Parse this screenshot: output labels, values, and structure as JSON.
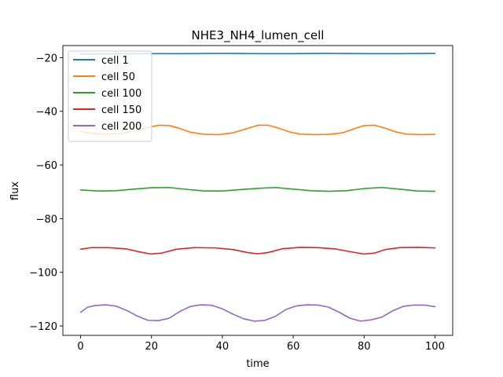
{
  "chart_data": {
    "type": "line",
    "title": "NHE3_NH4_lumen_cell",
    "xlabel": "time",
    "ylabel": "flux",
    "xlim": [
      -5,
      105
    ],
    "ylim": [
      -123.5,
      -15.5
    ],
    "xticks": [
      0,
      20,
      40,
      60,
      80,
      100
    ],
    "yticks": [
      -120,
      -100,
      -80,
      -60,
      -40,
      -20
    ],
    "xtick_labels": [
      "0",
      "20",
      "40",
      "60",
      "80",
      "100"
    ],
    "ytick_labels": [
      "−120",
      "−100",
      "−80",
      "−60",
      "−40",
      "−20"
    ],
    "grid": false,
    "legend_position": "top-left",
    "series": [
      {
        "name": "cell 1",
        "color": "#1f77b4",
        "x": [
          0,
          10,
          20,
          30,
          40,
          50,
          60,
          70,
          80,
          90,
          100
        ],
        "y": [
          -18.6,
          -18.6,
          -18.5,
          -18.5,
          -18.4,
          -18.5,
          -18.5,
          -18.4,
          -18.5,
          -18.5,
          -18.4
        ]
      },
      {
        "name": "cell 50",
        "color": "#ff7f0e",
        "x": [
          0,
          3,
          7,
          11,
          15,
          19,
          22,
          25,
          28,
          31,
          35,
          39,
          43,
          47,
          50,
          53,
          56,
          59,
          62,
          66,
          70,
          74,
          77,
          80,
          83,
          86,
          89,
          92,
          96,
          100
        ],
        "y": [
          -47.5,
          -48.2,
          -48.5,
          -48.3,
          -47.4,
          -46.0,
          -45.2,
          -45.3,
          -46.4,
          -47.8,
          -48.6,
          -48.7,
          -48.0,
          -46.4,
          -45.2,
          -45.2,
          -46.3,
          -47.7,
          -48.5,
          -48.7,
          -48.6,
          -48.0,
          -46.6,
          -45.3,
          -45.2,
          -46.3,
          -47.7,
          -48.5,
          -48.7,
          -48.6
        ]
      },
      {
        "name": "cell 100",
        "color": "#2ca02c",
        "x": [
          0,
          5,
          10,
          15,
          20,
          25,
          30,
          35,
          40,
          45,
          50,
          55,
          60,
          65,
          70,
          75,
          80,
          85,
          90,
          95,
          100
        ],
        "y": [
          -69.3,
          -69.7,
          -69.6,
          -69.0,
          -68.5,
          -68.4,
          -69.1,
          -69.7,
          -69.7,
          -69.2,
          -68.7,
          -68.4,
          -69.0,
          -69.6,
          -69.8,
          -69.6,
          -68.8,
          -68.4,
          -69.0,
          -69.7,
          -69.8
        ]
      },
      {
        "name": "cell 150",
        "color": "#d62728",
        "x": [
          0,
          3,
          8,
          13,
          17,
          20,
          23,
          27,
          32,
          38,
          43,
          47,
          50,
          53,
          57,
          62,
          67,
          72,
          76,
          80,
          83,
          86,
          90,
          95,
          100
        ],
        "y": [
          -91.4,
          -90.8,
          -90.8,
          -91.3,
          -92.5,
          -93.2,
          -92.8,
          -91.4,
          -90.8,
          -90.9,
          -91.5,
          -92.6,
          -93.1,
          -92.6,
          -91.2,
          -90.7,
          -90.8,
          -91.3,
          -92.3,
          -93.2,
          -92.8,
          -91.5,
          -90.8,
          -90.7,
          -90.9
        ]
      },
      {
        "name": "cell 200",
        "color": "#9467bd",
        "x": [
          0,
          2,
          4,
          7,
          10,
          13,
          16,
          19,
          22,
          25,
          28,
          31,
          34,
          37,
          40,
          43,
          46,
          49,
          52,
          55,
          58,
          61,
          64,
          67,
          70,
          73,
          76,
          79,
          82,
          85,
          88,
          91,
          94,
          97,
          100
        ],
        "y": [
          -114.9,
          -113.0,
          -112.4,
          -112.1,
          -112.6,
          -114.2,
          -116.3,
          -117.9,
          -118.0,
          -117.1,
          -114.6,
          -112.7,
          -112.1,
          -112.3,
          -113.6,
          -115.6,
          -117.3,
          -118.2,
          -117.9,
          -116.4,
          -113.8,
          -112.5,
          -112.1,
          -112.2,
          -113.0,
          -114.9,
          -117.1,
          -118.2,
          -117.7,
          -116.7,
          -114.4,
          -112.7,
          -112.2,
          -112.2,
          -112.8
        ]
      }
    ]
  }
}
